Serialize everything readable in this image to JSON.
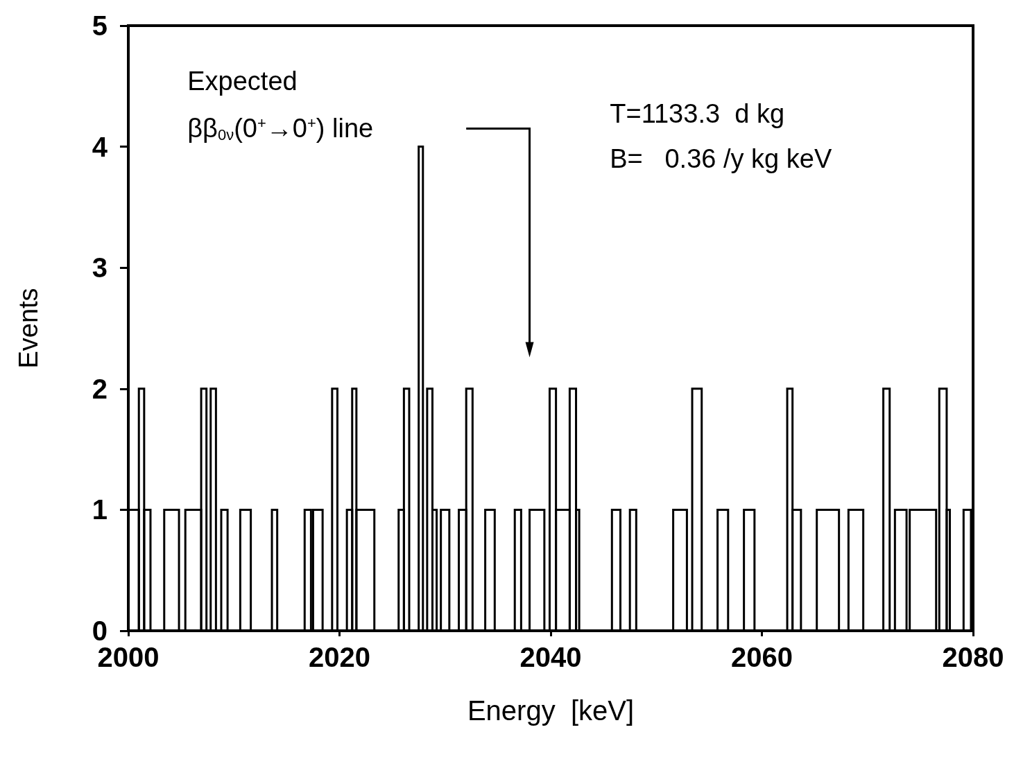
{
  "chart_data": {
    "type": "histogram",
    "xlabel": "Energy  [keV]",
    "ylabel": "Events",
    "bins": [
      2000,
      2001,
      2001.5,
      2002.1,
      2003.4,
      2004.8,
      2005.4,
      2006.9,
      2007.4,
      2007.8,
      2008.3,
      2008.8,
      2009.4,
      2010.6,
      2011.6,
      2013.6,
      2014.1,
      2016.7,
      2017.3,
      2017.5,
      2018.4,
      2019.3,
      2019.8,
      2020.7,
      2021.2,
      2021.6,
      2023.3,
      2025.6,
      2026.1,
      2026.6,
      2027.5,
      2027.9,
      2028.3,
      2028.8,
      2029.2,
      2029.6,
      2030.4,
      2031.3,
      2032.0,
      2032.6,
      2033.8,
      2034.7,
      2036.6,
      2037.2,
      2038.0,
      2039.4,
      2039.9,
      2040.5,
      2041.8,
      2042.4,
      2042.7,
      2045.8,
      2046.6,
      2047.5,
      2048.1,
      2051.6,
      2052.9,
      2053.4,
      2054.3,
      2055.8,
      2056.8,
      2058.3,
      2059.3,
      2062.4,
      2062.9,
      2063.7,
      2065.2,
      2067.3,
      2068.2,
      2069.6,
      2071.5,
      2072.1,
      2072.6,
      2073.7,
      2074.0,
      2076.5,
      2076.8,
      2077.5,
      2077.8,
      2079.1,
      2079.8,
      2080
    ],
    "values": [
      1,
      2,
      1,
      0,
      1,
      0,
      1,
      2,
      0,
      2,
      0,
      1,
      0,
      1,
      0,
      1,
      0,
      1,
      0,
      1,
      0,
      2,
      0,
      1,
      2,
      1,
      0,
      1,
      2,
      0,
      4,
      0,
      2,
      1,
      0,
      1,
      0,
      1,
      2,
      0,
      1,
      0,
      1,
      0,
      1,
      0,
      2,
      1,
      2,
      1,
      0,
      1,
      0,
      1,
      0,
      1,
      0,
      2,
      0,
      1,
      0,
      1,
      0,
      2,
      1,
      0,
      1,
      0,
      1,
      0,
      2,
      0,
      1,
      0,
      1,
      0,
      2,
      1,
      0,
      1,
      0
    ],
    "color": "#000000",
    "xlim": [
      2000,
      2080
    ],
    "xticks": [
      2000,
      2020,
      2040,
      2060,
      2080
    ],
    "ylim": [
      0,
      5
    ],
    "yticks": [
      0,
      1,
      2,
      3,
      4,
      5
    ],
    "grid": false,
    "annotations": [
      "Expected\nββ$_{0ν}$(0$^{+}$→0$^{+}$) line",
      "T=1133.3  d kg",
      "B=   0.36 /y kg keV"
    ]
  }
}
